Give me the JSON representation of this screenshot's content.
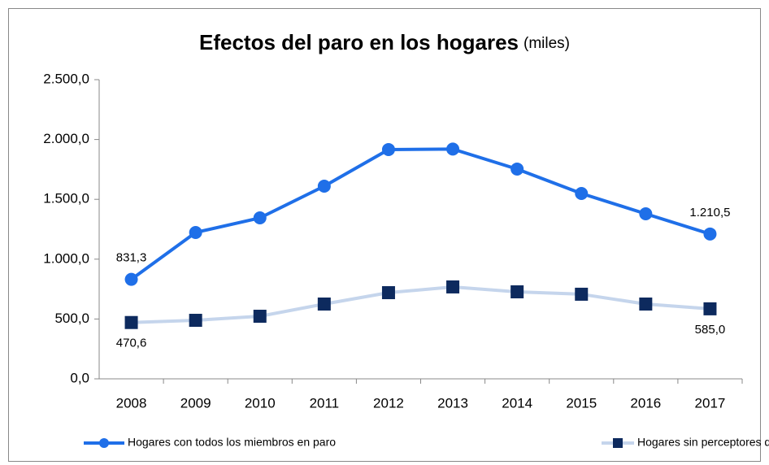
{
  "chart_data": {
    "type": "line",
    "title": "Efectos del paro en los hogares",
    "title_unit": "(miles)",
    "categories": [
      "2008",
      "2009",
      "2010",
      "2011",
      "2012",
      "2013",
      "2014",
      "2015",
      "2016",
      "2017"
    ],
    "series": [
      {
        "name": "Hogares con todos los miembros en paro",
        "color": "#1f6fe8",
        "marker": "circle",
        "values": [
          831.3,
          1223,
          1345,
          1610,
          1916,
          1920,
          1753,
          1549,
          1379,
          1210.5
        ],
        "value_labels": [
          "831,3",
          null,
          null,
          null,
          null,
          null,
          null,
          null,
          null,
          "1.210,5"
        ]
      },
      {
        "name": "Hogares sin perceptores de ingresos",
        "color": "#c5d5ec",
        "marker_color": "#0d2a5e",
        "marker": "square",
        "values": [
          470.6,
          489,
          523,
          625,
          720,
          768,
          727,
          707,
          625,
          585.0
        ],
        "value_labels": [
          "470,6",
          null,
          null,
          null,
          null,
          null,
          null,
          null,
          null,
          "585,0"
        ]
      }
    ],
    "ylim": [
      0,
      2500
    ],
    "yticks": [
      {
        "value": 0,
        "label": "0,0"
      },
      {
        "value": 500,
        "label": "500,0"
      },
      {
        "value": 1000,
        "label": "1.000,0"
      },
      {
        "value": 1500,
        "label": "1.500,0"
      },
      {
        "value": 2000,
        "label": "2.000,0"
      },
      {
        "value": 2500,
        "label": "2.500,0"
      }
    ],
    "grid": false,
    "legend": "bottom"
  }
}
